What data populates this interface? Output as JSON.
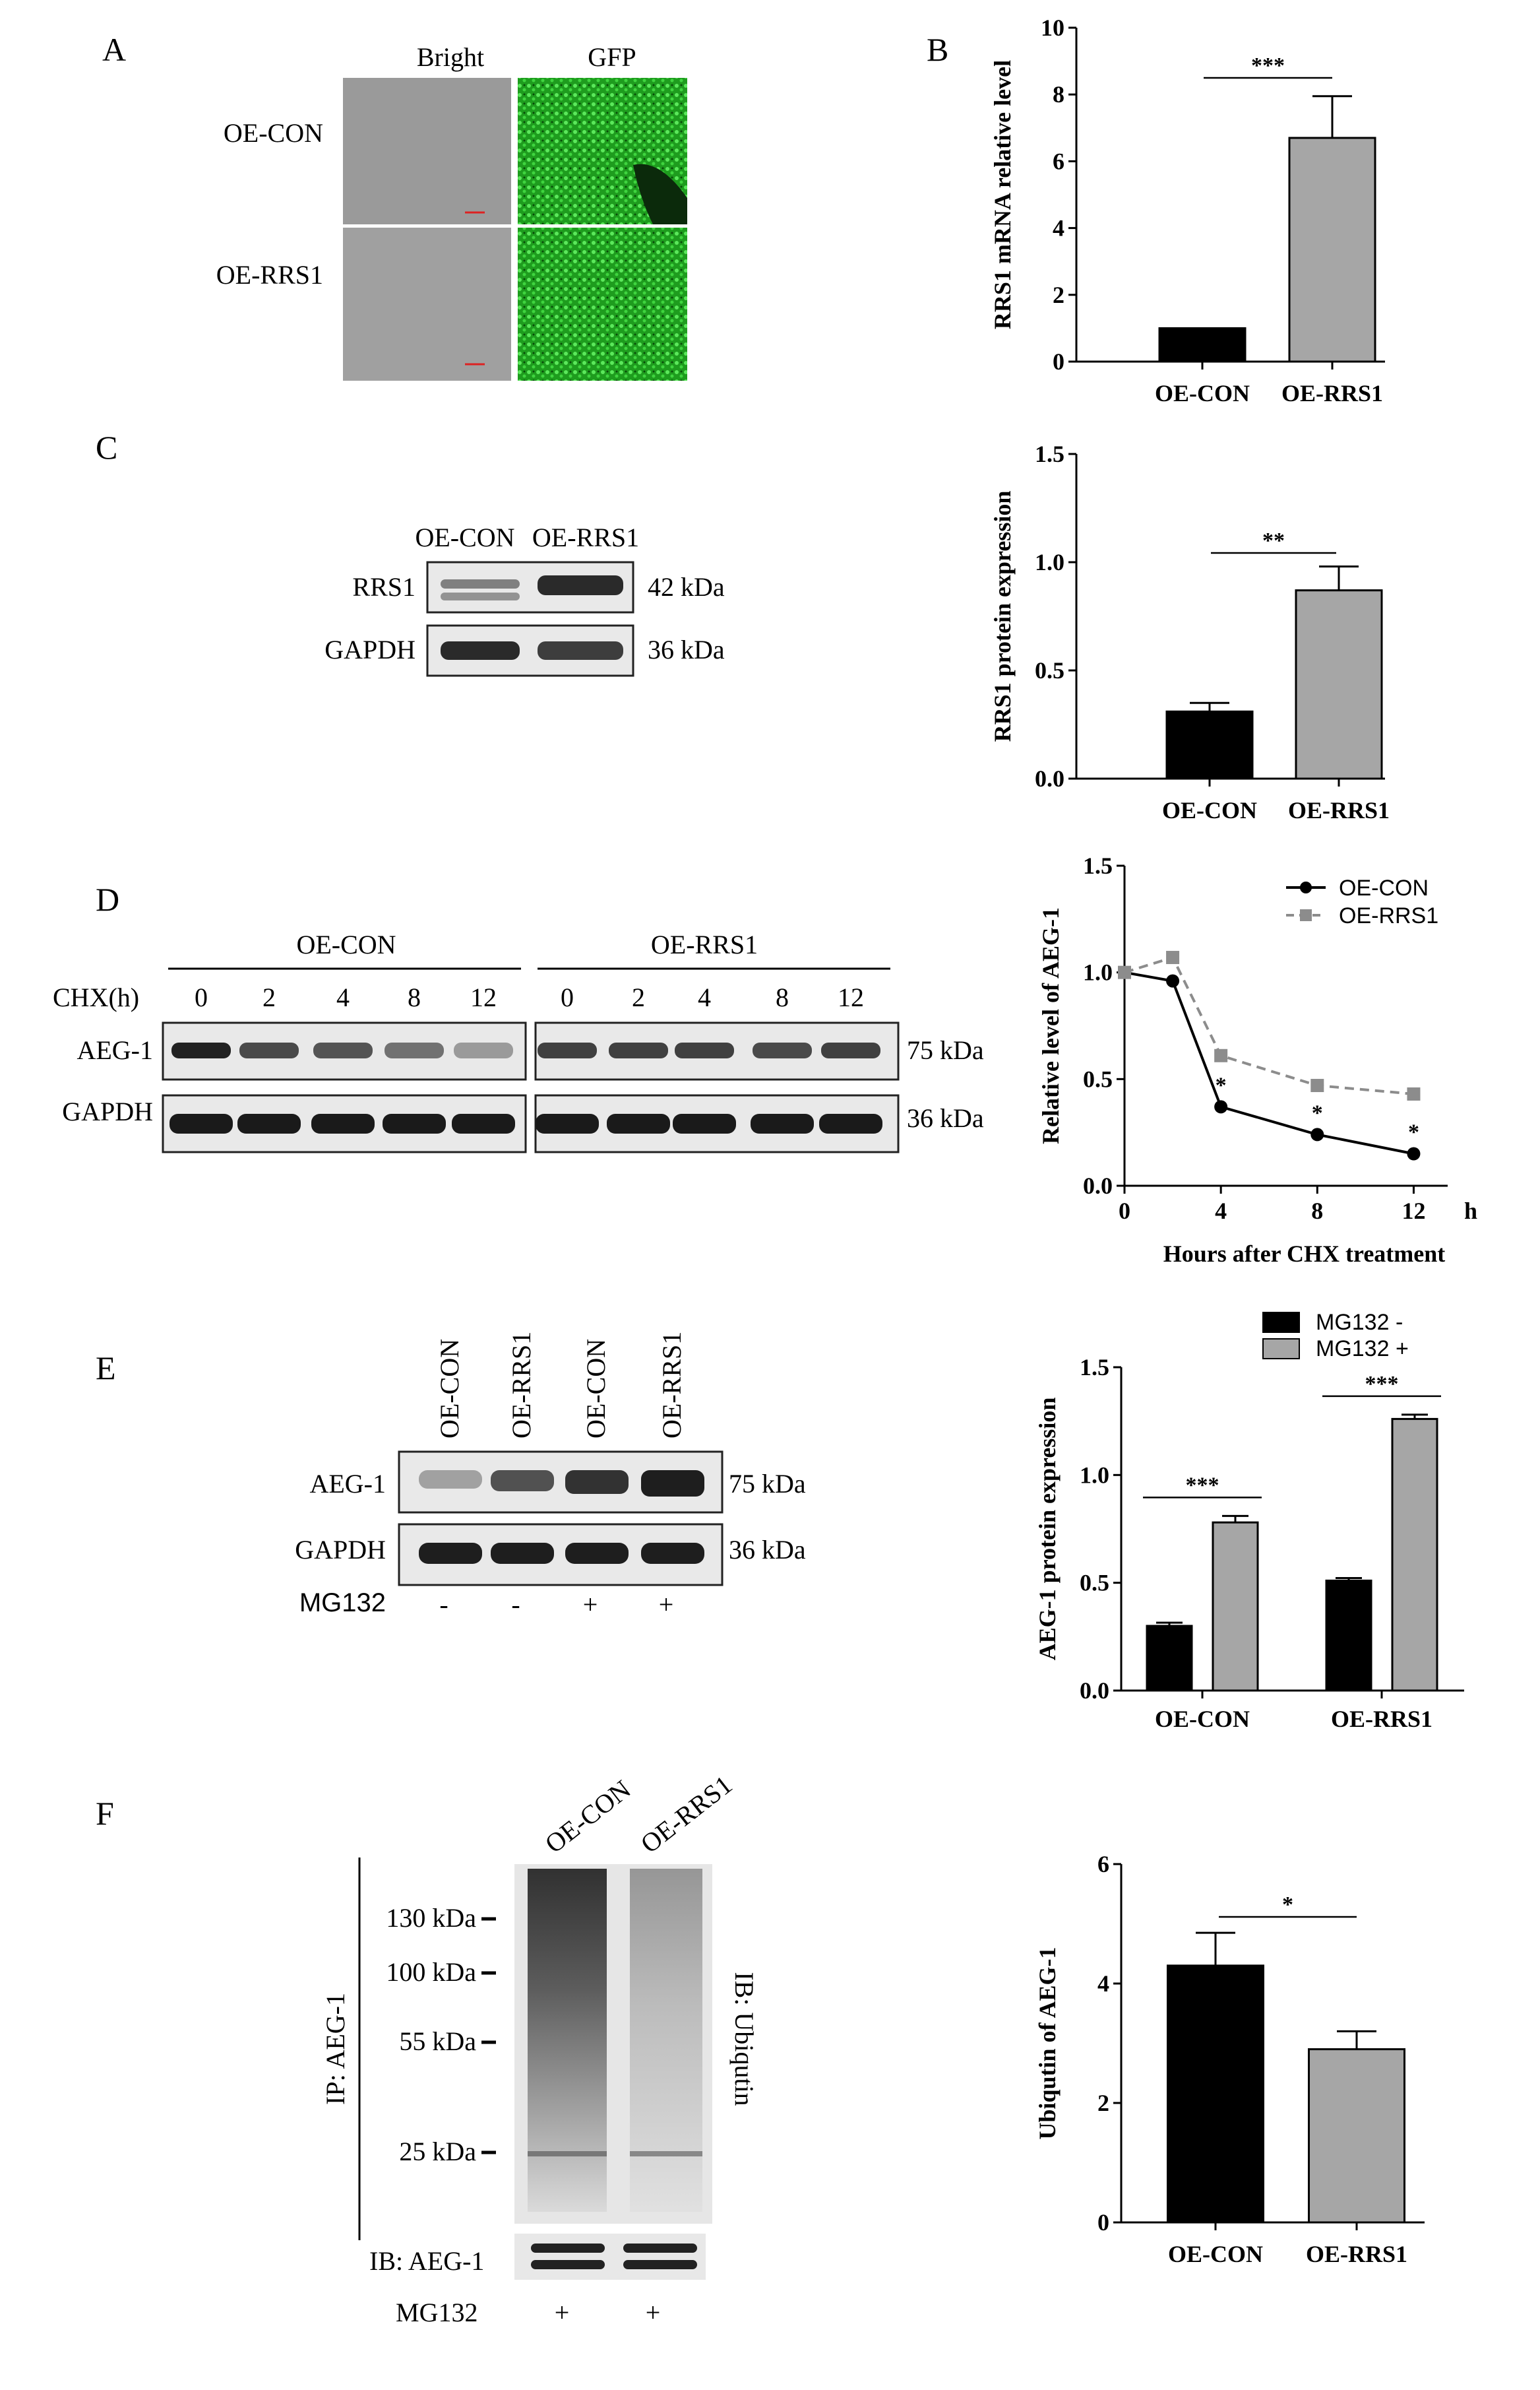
{
  "panels": {
    "A": {
      "letter": "A",
      "col_labels": [
        "Bright",
        "GFP"
      ],
      "row_labels": [
        "OE-CON",
        "OE-RRS1"
      ]
    },
    "C": {
      "letter": "C",
      "lanes": [
        "OE-CON",
        "OE-RRS1"
      ],
      "rows": [
        {
          "label": "RRS1",
          "kda": "42 kDa"
        },
        {
          "label": "GAPDH",
          "kda": "36 kDa"
        }
      ]
    },
    "D": {
      "letter": "D",
      "groups": [
        "OE-CON",
        "OE-RRS1"
      ],
      "chx_label": "CHX(h)",
      "timepoints": [
        "0",
        "2",
        "4",
        "8",
        "12"
      ],
      "rows": [
        {
          "label": "AEG-1",
          "kda": "75 kDa"
        },
        {
          "label": "GAPDH",
          "kda": "36 kDa"
        }
      ]
    },
    "E": {
      "letter": "E",
      "lanes": [
        "OE-CON",
        "OE-RRS1",
        "OE-CON",
        "OE-RRS1"
      ],
      "rows": [
        {
          "label": "AEG-1",
          "kda": "75 kDa"
        },
        {
          "label": "GAPDH",
          "kda": "36 kDa"
        }
      ],
      "mg132_label": "MG132",
      "mg132_signs": [
        "-",
        "-",
        "+",
        "+"
      ]
    },
    "F": {
      "letter": "F",
      "lanes": [
        "OE-CON",
        "OE-RRS1"
      ],
      "markers": [
        "130 kDa",
        "100 kDa",
        "55 kDa",
        "25 kDa"
      ],
      "ip_label": "IP: AEG-1",
      "ib_label": "IB: Ubiqutin",
      "ib2_label": "IB: AEG-1",
      "mg132_label": "MG132",
      "mg132_signs": [
        "+",
        "+"
      ]
    }
  },
  "chart_data": [
    {
      "id": "B",
      "letter": "B",
      "type": "bar",
      "categories": [
        "OE-CON",
        "OE-RRS1"
      ],
      "values": [
        1.0,
        6.7
      ],
      "errors": [
        0,
        1.25
      ],
      "colors": [
        "#000000",
        "#a6a6a6"
      ],
      "ylabel": "RRS1 mRNA relative level",
      "ylim": [
        0,
        10
      ],
      "yticks": [
        "0",
        "2",
        "4",
        "6",
        "8",
        "10"
      ],
      "significance": "***"
    },
    {
      "id": "C",
      "type": "bar",
      "categories": [
        "OE-CON",
        "OE-RRS1"
      ],
      "values": [
        0.31,
        0.87
      ],
      "errors": [
        0.04,
        0.11
      ],
      "colors": [
        "#000000",
        "#a6a6a6"
      ],
      "ylabel": "RRS1 protein expression",
      "ylim": [
        0,
        1.5
      ],
      "yticks": [
        "0.0",
        "0.5",
        "1.0",
        "1.5"
      ],
      "significance": "**"
    },
    {
      "id": "D",
      "type": "line",
      "x": [
        0,
        2,
        4,
        8,
        12
      ],
      "xticks": [
        "0",
        "4",
        "8",
        "12"
      ],
      "x_unit": "h",
      "series": [
        {
          "name": "OE-CON",
          "values": [
            1.0,
            0.96,
            0.37,
            0.24,
            0.15
          ],
          "color": "#000000",
          "marker": "circle",
          "dash": false
        },
        {
          "name": "OE-RRS1",
          "values": [
            1.0,
            1.07,
            0.61,
            0.47,
            0.43
          ],
          "color": "#8c8c8c",
          "marker": "square",
          "dash": true
        }
      ],
      "sig_marks": [
        {
          "x": 4,
          "label": "*"
        },
        {
          "x": 8,
          "label": "*"
        },
        {
          "x": 12,
          "label": "*"
        }
      ],
      "xlabel": "Hours after CHX treatment",
      "ylabel": "Relative level of AEG-1",
      "ylim": [
        0,
        1.5
      ],
      "yticks": [
        "0.0",
        "0.5",
        "1.0",
        "1.5"
      ],
      "legend": "top-right"
    },
    {
      "id": "E",
      "type": "bar",
      "categories": [
        "OE-CON",
        "OE-RRS1"
      ],
      "series": [
        {
          "name": "MG132 -",
          "values": [
            0.3,
            0.51
          ],
          "errors": [
            0.015,
            0.012
          ],
          "color": "#000000"
        },
        {
          "name": "MG132 +",
          "values": [
            0.78,
            1.26
          ],
          "errors": [
            0.03,
            0.02
          ],
          "color": "#a6a6a6"
        }
      ],
      "ylabel": "AEG-1 protein expression",
      "ylim": [
        0,
        1.5
      ],
      "yticks": [
        "0.0",
        "0.5",
        "1.0",
        "1.5"
      ],
      "significance": [
        "***",
        "***"
      ],
      "legend": "top-right"
    },
    {
      "id": "F",
      "type": "bar",
      "categories": [
        "OE-CON",
        "OE-RRS1"
      ],
      "values": [
        4.3,
        2.9
      ],
      "errors": [
        0.55,
        0.3
      ],
      "colors": [
        "#000000",
        "#a6a6a6"
      ],
      "ylabel": "Ubiqutin of AEG-1",
      "ylim": [
        0,
        6
      ],
      "yticks": [
        "0",
        "2",
        "4",
        "6"
      ],
      "significance": "*"
    }
  ]
}
